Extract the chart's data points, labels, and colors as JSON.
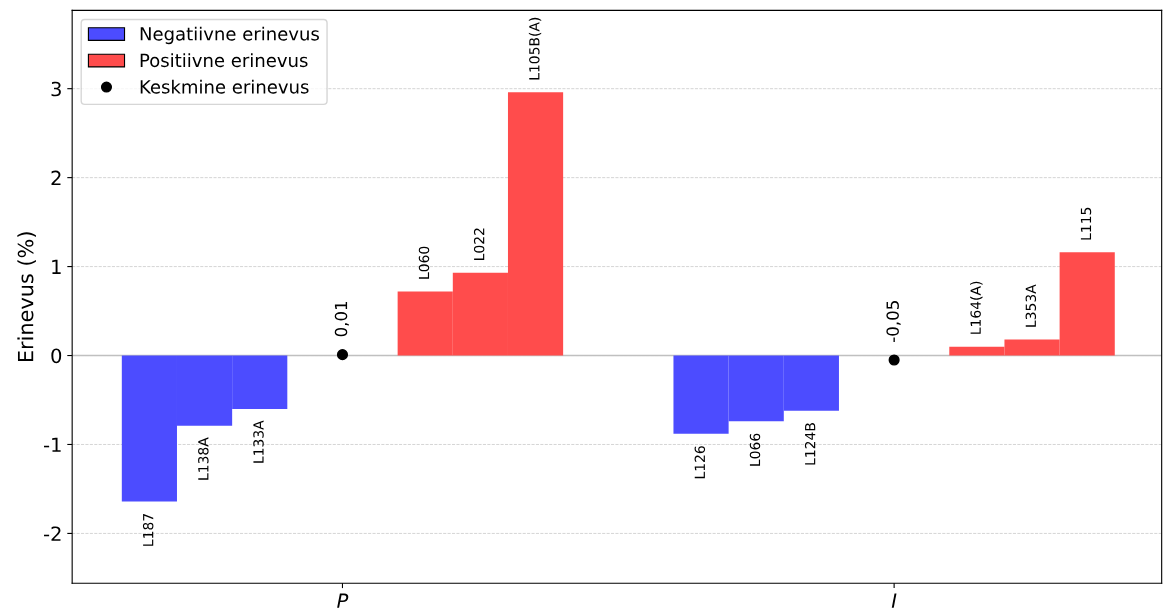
{
  "chart_data": {
    "type": "bar",
    "ylabel": "Erinevus (%)",
    "categories": [
      null,
      null,
      null,
      null,
      null,
      null,
      null,
      "P",
      null,
      null,
      null,
      null,
      null,
      null,
      null,
      null,
      null,
      null,
      null,
      null,
      null,
      null,
      null,
      null,
      null,
      null,
      null,
      "I",
      null,
      null,
      null,
      null,
      null,
      null,
      null
    ],
    "series": [
      {
        "name": "Negatiivne erinevus",
        "color": "#4c4cff",
        "values": [
          -1.64,
          null,
          -0.79,
          null,
          -0.6,
          null,
          null,
          null,
          null,
          null,
          null,
          null,
          null,
          null,
          null,
          null,
          null,
          null,
          null,
          null,
          -0.88,
          null,
          -0.74,
          null,
          -0.62,
          null,
          null,
          null,
          null,
          null,
          null,
          null,
          null,
          null,
          null
        ],
        "value_labels": [
          "L187",
          null,
          "L138A",
          null,
          "L133A",
          null,
          null,
          null,
          null,
          null,
          null,
          null,
          null,
          null,
          null,
          null,
          null,
          null,
          null,
          null,
          "L126",
          null,
          "L066",
          null,
          "L124B",
          null,
          null,
          null,
          null,
          null,
          null,
          null,
          null,
          null,
          null
        ]
      },
      {
        "name": "Positiivne erinevus",
        "color": "#ff4c4c",
        "values": [
          null,
          null,
          null,
          null,
          null,
          null,
          null,
          null,
          null,
          null,
          0.72,
          null,
          0.93,
          null,
          2.96,
          null,
          null,
          null,
          null,
          null,
          null,
          null,
          null,
          null,
          null,
          null,
          null,
          null,
          null,
          null,
          0.1,
          null,
          0.18,
          null,
          1.16
        ],
        "value_labels": [
          null,
          null,
          null,
          null,
          null,
          null,
          null,
          null,
          null,
          null,
          "L060",
          null,
          "L022",
          null,
          "L105B(A)",
          null,
          null,
          null,
          null,
          null,
          null,
          null,
          null,
          null,
          null,
          null,
          null,
          null,
          null,
          null,
          "L164(A)",
          null,
          "L353A",
          null,
          "L115"
        ]
      },
      {
        "name": "Keskmine erinevus",
        "type": "scatter",
        "color": "#000000",
        "values": [
          null,
          null,
          null,
          null,
          null,
          null,
          null,
          0.01,
          null,
          null,
          null,
          null,
          null,
          null,
          null,
          null,
          null,
          null,
          null,
          null,
          null,
          null,
          null,
          null,
          null,
          null,
          null,
          -0.05,
          null,
          null,
          null,
          null,
          null,
          null,
          null
        ],
        "value_labels": [
          null,
          null,
          null,
          null,
          null,
          null,
          null,
          "0,01",
          null,
          null,
          null,
          null,
          null,
          null,
          null,
          null,
          null,
          null,
          null,
          null,
          null,
          null,
          null,
          null,
          null,
          null,
          null,
          "-0,05",
          null,
          null,
          null,
          null,
          null,
          null,
          null
        ]
      }
    ],
    "ylim": [
      -2.56,
      3.88
    ],
    "yticks": [
      -2,
      -1,
      0,
      1,
      2,
      3
    ],
    "grid": "y",
    "legend": "top left",
    "marker": "circle",
    "ref_lines": [
      {
        "axis": "y",
        "value": 0,
        "color": "#c0c0c0"
      }
    ]
  }
}
